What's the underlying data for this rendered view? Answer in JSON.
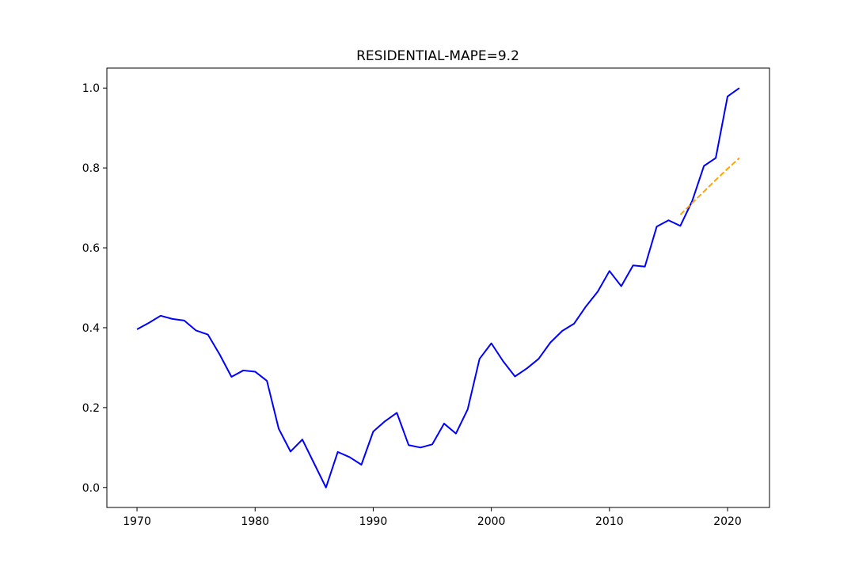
{
  "chart_data": {
    "type": "line",
    "title": "RESIDENTIAL-MAPE=9.2",
    "xlabel": "",
    "ylabel": "",
    "xlim": [
      1967.45,
      2023.55
    ],
    "ylim": [
      -0.05,
      1.05
    ],
    "grid": false,
    "x_ticks": [
      1970,
      1980,
      1990,
      2000,
      2010,
      2020
    ],
    "y_ticks": [
      0.0,
      0.2,
      0.4,
      0.6,
      0.8,
      1.0
    ],
    "x_tick_labels": [
      "1970",
      "1980",
      "1990",
      "2000",
      "2010",
      "2020"
    ],
    "y_tick_labels": [
      "0.0",
      "0.2",
      "0.4",
      "0.6",
      "0.8",
      "1.0"
    ],
    "series": [
      {
        "color": "#0000ff",
        "style": "solid",
        "x": [
          1970,
          1971,
          1972,
          1973,
          1974,
          1975,
          1976,
          1977,
          1978,
          1979,
          1980,
          1981,
          1982,
          1983,
          1984,
          1985,
          1986,
          1987,
          1988,
          1989,
          1990,
          1991,
          1992,
          1993,
          1994,
          1995,
          1996,
          1997,
          1998,
          1999,
          2000,
          2001,
          2002,
          2003,
          2004,
          2005,
          2006,
          2007,
          2008,
          2009,
          2010,
          2011,
          2012,
          2013,
          2014,
          2015,
          2016,
          2017,
          2018,
          2019,
          2020,
          2021
        ],
        "y": [
          0.396,
          0.412,
          0.43,
          0.422,
          0.418,
          0.393,
          0.383,
          0.333,
          0.277,
          0.293,
          0.29,
          0.267,
          0.147,
          0.09,
          0.12,
          0.06,
          0.0,
          0.089,
          0.076,
          0.057,
          0.14,
          0.166,
          0.187,
          0.106,
          0.1,
          0.108,
          0.16,
          0.135,
          0.196,
          0.322,
          0.361,
          0.316,
          0.278,
          0.298,
          0.322,
          0.363,
          0.392,
          0.41,
          0.453,
          0.49,
          0.542,
          0.504,
          0.556,
          0.553,
          0.653,
          0.669,
          0.655,
          0.717,
          0.805,
          0.825,
          0.979,
          1.0
        ]
      },
      {
        "color": "#ffa500",
        "style": "dashed",
        "x": [
          2016,
          2017,
          2018,
          2019,
          2020,
          2021
        ],
        "y": [
          0.683,
          0.712,
          0.741,
          0.77,
          0.798,
          0.825
        ]
      }
    ]
  }
}
